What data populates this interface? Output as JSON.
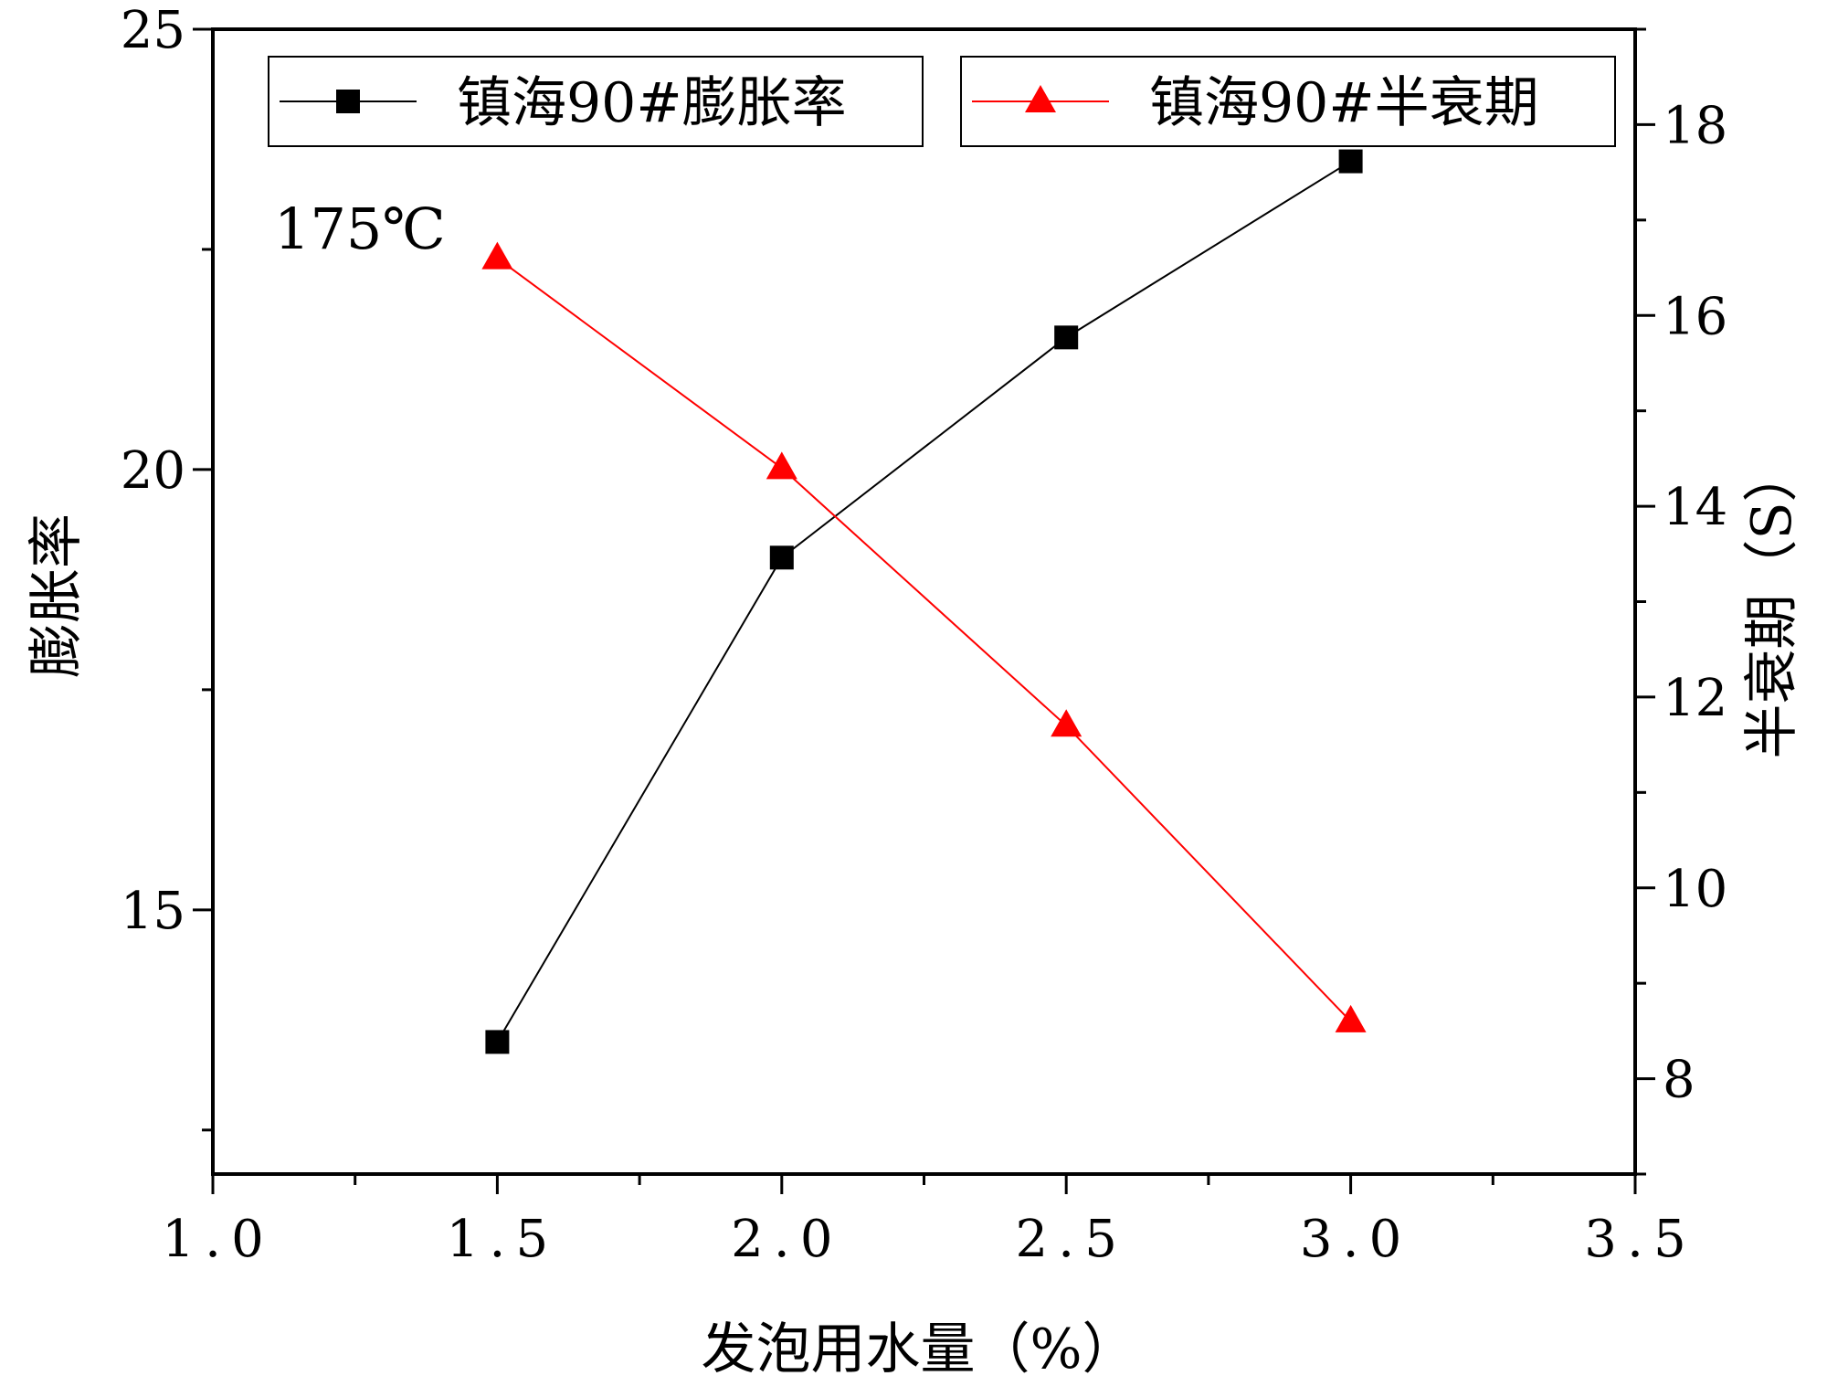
{
  "chart_data": {
    "type": "line",
    "annotation": "175℃",
    "xlabel": "发泡用水量（%）",
    "ylabel_left": "膨胀率",
    "ylabel_right": "半衰期（S）",
    "xlim": [
      1.0,
      3.5
    ],
    "ylim_left": [
      12.0,
      25.0
    ],
    "ylim_right": [
      7.0,
      19.0
    ],
    "x_ticks": [
      "1.0",
      "1.5",
      "2.0",
      "2.5",
      "3.0",
      "3.5"
    ],
    "y_left_ticks": [
      "15",
      "20",
      "25"
    ],
    "y_right_ticks": [
      "8",
      "10",
      "12",
      "14",
      "16",
      "18"
    ],
    "grid": false,
    "legend_placement": "top",
    "series": [
      {
        "name": "镇海90#膨胀率",
        "axis": "left",
        "marker": "square",
        "color": "#000000",
        "x": [
          1.5,
          2.0,
          2.5,
          3.0
        ],
        "values": [
          13.5,
          19.0,
          21.5,
          23.5
        ]
      },
      {
        "name": "镇海90#半衰期",
        "axis": "right",
        "marker": "triangle",
        "color": "#ff0000",
        "x": [
          1.5,
          2.0,
          2.5,
          3.0
        ],
        "values": [
          16.6,
          14.4,
          11.7,
          8.6
        ]
      }
    ]
  }
}
